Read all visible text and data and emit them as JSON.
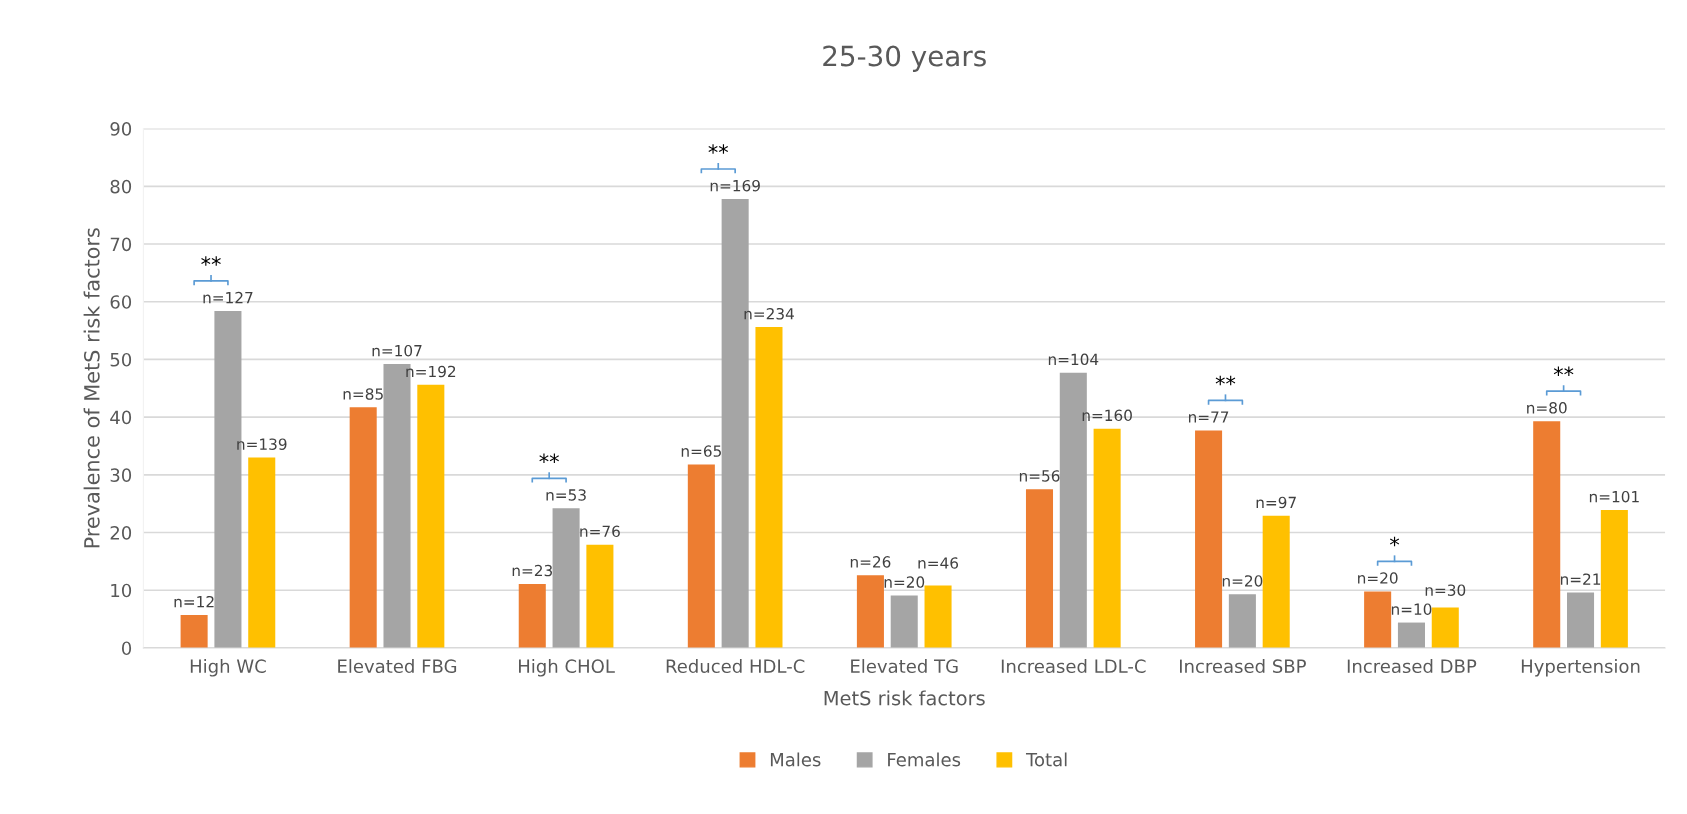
{
  "chart_data": {
    "type": "bar",
    "title": "25-30 years",
    "xlabel": "MetS risk factors",
    "ylabel": "Prevalence of MetS risk factors",
    "categories": [
      "High WC",
      "Elevated FBG",
      "High CHOL",
      "Reduced HDL-C",
      "Elevated TG",
      "Increased LDL-C",
      "Increased SBP",
      "Increased DBP",
      "Hypertension"
    ],
    "series": [
      {
        "name": "Males",
        "color": "#ed7d31",
        "values": [
          5.7,
          41.7,
          11.1,
          31.8,
          12.6,
          27.5,
          37.7,
          9.8,
          39.3
        ]
      },
      {
        "name": "Females",
        "color": "#a5a5a5",
        "values": [
          58.4,
          49.2,
          24.2,
          77.8,
          9.1,
          47.7,
          9.3,
          4.4,
          9.6
        ]
      },
      {
        "name": "Total",
        "color": "#ffc000",
        "values": [
          33.0,
          45.6,
          17.9,
          55.6,
          10.8,
          38.0,
          22.9,
          7.0,
          23.9
        ]
      }
    ],
    "ylim": [
      0,
      90
    ],
    "yticks": [
      0,
      10,
      20,
      30,
      40,
      50,
      60,
      70,
      80,
      90
    ],
    "grid": "y",
    "legend": "bottom",
    "annotations": [
      "n=12",
      "n=127",
      "n=139",
      "**",
      "n=85",
      "n=107",
      "n=192",
      null,
      "n=23",
      "n=53",
      "n=76",
      "**",
      "n=65",
      "n=169",
      "n=234",
      "**",
      "n=26",
      "n=20",
      "n=46",
      null,
      "n=56",
      "n=104",
      "n=160",
      null,
      "n=77",
      "n=20",
      "n=97",
      "**",
      "n=20",
      "n=10",
      "n=30",
      "*",
      "n=80",
      "n=21",
      "n=101",
      "**"
    ]
  }
}
